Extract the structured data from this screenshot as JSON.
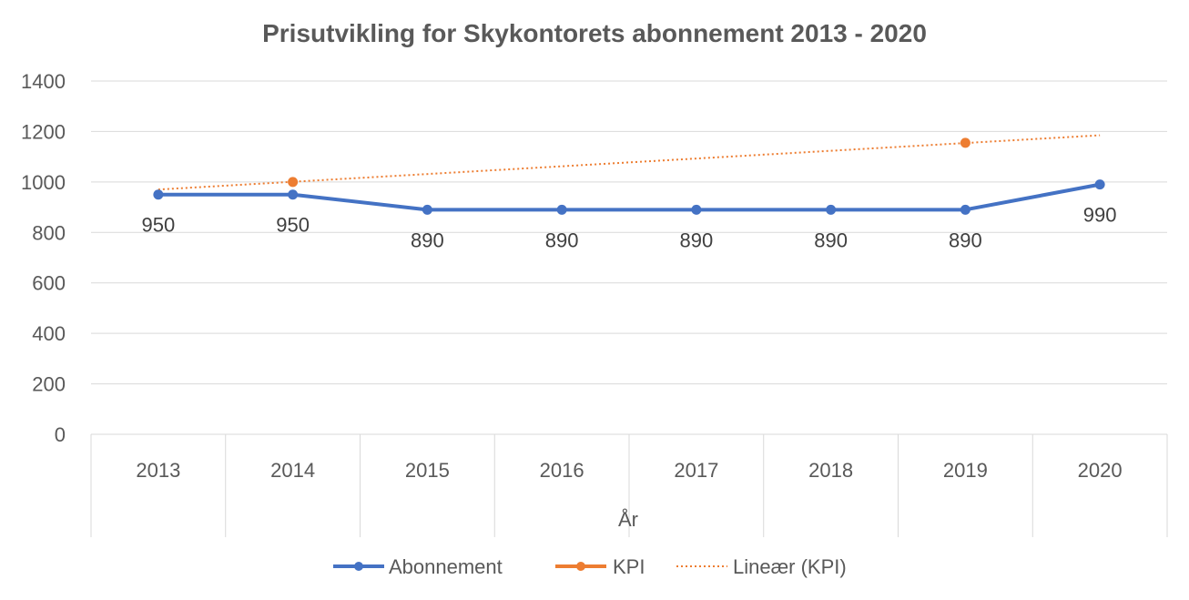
{
  "chart_data": {
    "type": "line",
    "title": "Prisutvikling for Skykontorets abonnement 2013 - 2020",
    "xlabel": "År",
    "ylabel": "",
    "categories": [
      "2013",
      "2014",
      "2015",
      "2016",
      "2017",
      "2018",
      "2019",
      "2020"
    ],
    "ylim": [
      0,
      1400
    ],
    "yticks": [
      "0",
      "200",
      "400",
      "600",
      "800",
      "1000",
      "1200",
      "1400"
    ],
    "grid": true,
    "legend_position": "bottom",
    "series": [
      {
        "name": "Abonnement",
        "values": [
          950,
          950,
          890,
          890,
          890,
          890,
          890,
          990
        ],
        "data_labels": [
          "950",
          "950",
          "890",
          "890",
          "890",
          "890",
          "890",
          "990"
        ],
        "color": "#4472C4"
      },
      {
        "name": "KPI",
        "values": [
          null,
          1000,
          null,
          null,
          null,
          null,
          1155,
          null
        ],
        "color": "#ED7D31"
      }
    ],
    "trendline": {
      "name": "Lineær (KPI)",
      "start": 970,
      "end": 1185,
      "color": "#ED7D31"
    }
  }
}
